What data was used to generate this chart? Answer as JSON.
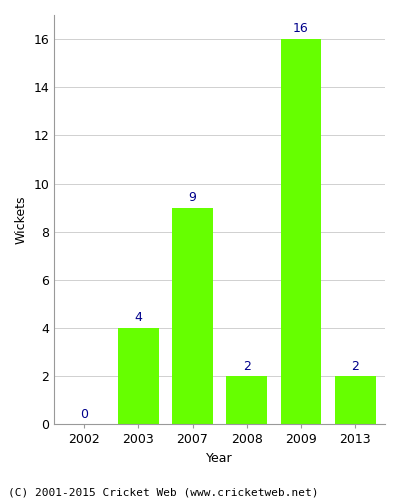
{
  "years": [
    "2002",
    "2003",
    "2007",
    "2008",
    "2009",
    "2013"
  ],
  "wickets": [
    0,
    4,
    9,
    2,
    16,
    2
  ],
  "bar_color": "#66ff00",
  "bar_edgecolor": "#66ff00",
  "label_color": "#00008B",
  "xlabel": "Year",
  "ylabel": "Wickets",
  "ylim": [
    0,
    17
  ],
  "yticks": [
    0,
    2,
    4,
    6,
    8,
    10,
    12,
    14,
    16
  ],
  "footer": "(C) 2001-2015 Cricket Web (www.cricketweb.net)",
  "grid_color": "#d0d0d0",
  "bg_color": "#ffffff",
  "plot_bg_color": "#ffffff",
  "label_fontsize": 9,
  "axis_label_fontsize": 9,
  "tick_fontsize": 9,
  "footer_fontsize": 8,
  "bar_width": 0.75
}
